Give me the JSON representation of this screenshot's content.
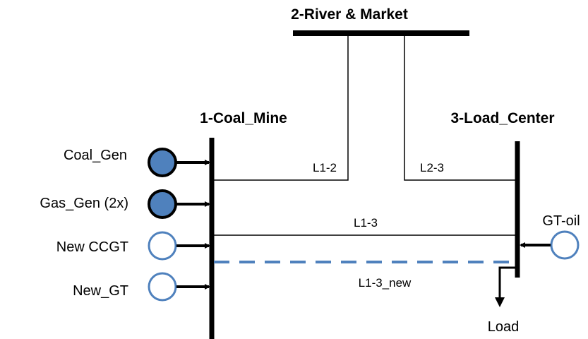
{
  "buses": [
    {
      "label": "1-Coal_Mine"
    },
    {
      "label": "2-River & Market"
    },
    {
      "label": "3-Load_Center"
    }
  ],
  "lines": [
    {
      "label": "L1-2"
    },
    {
      "label": "L2-3"
    },
    {
      "label": "L1-3"
    },
    {
      "label": "L1-3_new"
    }
  ],
  "generators": [
    {
      "label": "Coal_Gen"
    },
    {
      "label": "Gas_Gen (2x)"
    },
    {
      "label": "New CCGT"
    },
    {
      "label": "New_GT"
    },
    {
      "label": "GT-oil"
    }
  ],
  "load": {
    "label": "Load"
  }
}
